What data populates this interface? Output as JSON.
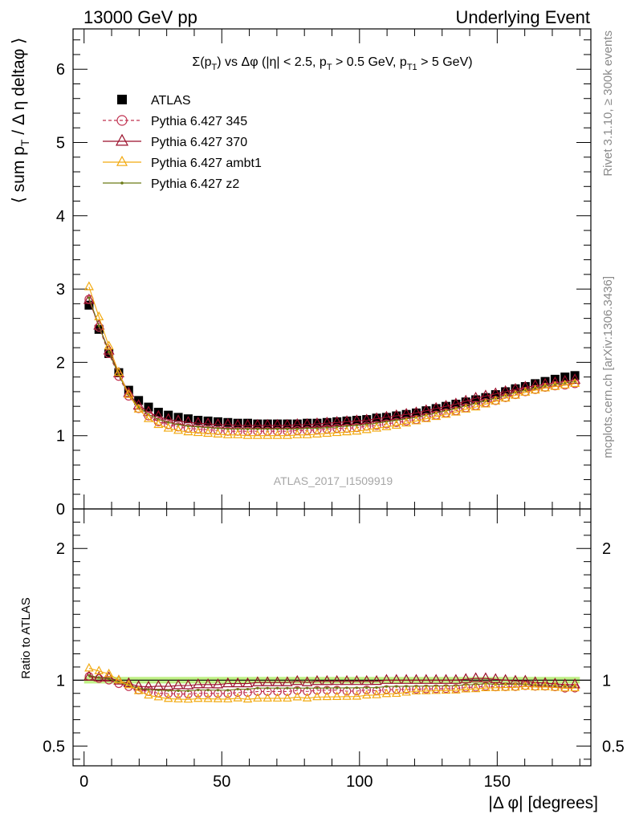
{
  "header": {
    "left": "13000 GeV pp",
    "right": "Underlying Event"
  },
  "side_labels": {
    "rivet": "Rivet 3.1.10, ≥ 300k events",
    "mcplots": "mcplots.cern.ch [arXiv:1306.3436]"
  },
  "watermark": "ATLAS_2017_I1509919",
  "colors": {
    "atlas": "#000000",
    "p345": "#c0304f",
    "p370": "#9a0f2a",
    "ambt1": "#f2a90f",
    "z2": "#6b7a16",
    "band": "#b9f07a"
  },
  "chart_data": [
    {
      "type": "scatter",
      "panel": "main",
      "title": "Σ(pT) vs Δφ (|η| < 2.5, pT > 0.5 GeV, pT1 > 5 GeV)",
      "ylabel": "⟨ sum pT / Δ η deltaφ ⟩",
      "xlim": [
        -4,
        184
      ],
      "ylim": [
        0,
        6.55
      ],
      "yticks": [
        0,
        1,
        2,
        3,
        4,
        5,
        6
      ],
      "legend_position": "top-left",
      "legend": [
        "ATLAS",
        "Pythia 6.427 345",
        "Pythia 6.427 370",
        "Pythia 6.427 ambt1",
        "Pythia 6.427 z2"
      ],
      "x": [
        1.8,
        5.4,
        9.0,
        12.6,
        16.2,
        19.8,
        23.4,
        27.0,
        30.6,
        34.2,
        37.8,
        41.4,
        45.0,
        48.6,
        52.2,
        55.8,
        59.4,
        63.0,
        66.6,
        70.2,
        73.8,
        77.4,
        81.0,
        84.6,
        88.2,
        91.8,
        95.4,
        99.0,
        102.6,
        106.2,
        109.8,
        113.4,
        117.0,
        120.6,
        124.2,
        127.8,
        131.4,
        135.0,
        138.6,
        142.2,
        145.8,
        149.4,
        153.0,
        156.6,
        160.2,
        163.8,
        167.4,
        171.0,
        174.6,
        178.2
      ],
      "series": [
        {
          "name": "ATLAS",
          "values": [
            2.78,
            2.45,
            2.12,
            1.86,
            1.62,
            1.48,
            1.39,
            1.32,
            1.28,
            1.25,
            1.23,
            1.21,
            1.2,
            1.19,
            1.18,
            1.17,
            1.17,
            1.16,
            1.16,
            1.16,
            1.16,
            1.16,
            1.17,
            1.17,
            1.18,
            1.19,
            1.2,
            1.21,
            1.22,
            1.24,
            1.25,
            1.27,
            1.29,
            1.31,
            1.34,
            1.37,
            1.4,
            1.43,
            1.46,
            1.49,
            1.52,
            1.56,
            1.6,
            1.64,
            1.67,
            1.71,
            1.74,
            1.77,
            1.8,
            1.82
          ]
        },
        {
          "name": "Pythia 6.427 345",
          "values": [
            2.86,
            2.48,
            2.12,
            1.81,
            1.54,
            1.37,
            1.27,
            1.19,
            1.15,
            1.12,
            1.1,
            1.09,
            1.08,
            1.07,
            1.06,
            1.06,
            1.06,
            1.06,
            1.06,
            1.06,
            1.06,
            1.07,
            1.07,
            1.08,
            1.09,
            1.1,
            1.1,
            1.11,
            1.13,
            1.14,
            1.16,
            1.18,
            1.2,
            1.22,
            1.25,
            1.28,
            1.31,
            1.34,
            1.38,
            1.41,
            1.45,
            1.48,
            1.52,
            1.56,
            1.6,
            1.63,
            1.66,
            1.68,
            1.69,
            1.71
          ]
        },
        {
          "name": "Pythia 6.427 370",
          "values": [
            2.85,
            2.5,
            2.16,
            1.85,
            1.58,
            1.41,
            1.32,
            1.26,
            1.22,
            1.2,
            1.18,
            1.17,
            1.16,
            1.15,
            1.15,
            1.14,
            1.14,
            1.14,
            1.14,
            1.14,
            1.14,
            1.15,
            1.15,
            1.16,
            1.17,
            1.18,
            1.19,
            1.2,
            1.21,
            1.23,
            1.25,
            1.27,
            1.29,
            1.31,
            1.34,
            1.37,
            1.4,
            1.43,
            1.47,
            1.51,
            1.54,
            1.57,
            1.6,
            1.63,
            1.66,
            1.68,
            1.7,
            1.72,
            1.74,
            1.76
          ]
        },
        {
          "name": "Pythia 6.427 ambt1",
          "values": [
            3.03,
            2.62,
            2.22,
            1.86,
            1.56,
            1.36,
            1.23,
            1.15,
            1.1,
            1.07,
            1.05,
            1.04,
            1.03,
            1.02,
            1.01,
            1.01,
            1.0,
            1.0,
            1.0,
            1.0,
            1.0,
            1.01,
            1.01,
            1.02,
            1.03,
            1.04,
            1.05,
            1.06,
            1.08,
            1.1,
            1.12,
            1.14,
            1.17,
            1.2,
            1.23,
            1.26,
            1.29,
            1.32,
            1.36,
            1.39,
            1.43,
            1.47,
            1.51,
            1.55,
            1.59,
            1.62,
            1.65,
            1.67,
            1.69,
            1.71
          ]
        },
        {
          "name": "Pythia 6.427 z2",
          "values": [
            2.88,
            2.5,
            2.14,
            1.83,
            1.56,
            1.39,
            1.29,
            1.22,
            1.18,
            1.15,
            1.13,
            1.12,
            1.11,
            1.1,
            1.09,
            1.09,
            1.09,
            1.09,
            1.09,
            1.09,
            1.09,
            1.09,
            1.1,
            1.1,
            1.11,
            1.12,
            1.13,
            1.14,
            1.15,
            1.17,
            1.19,
            1.21,
            1.23,
            1.25,
            1.28,
            1.31,
            1.34,
            1.37,
            1.41,
            1.44,
            1.48,
            1.51,
            1.55,
            1.59,
            1.62,
            1.65,
            1.68,
            1.7,
            1.72,
            1.74
          ]
        }
      ]
    },
    {
      "type": "scatter",
      "panel": "ratio",
      "ylabel": "Ratio to ATLAS",
      "xlabel": "|Δ φ| [degrees]",
      "xlim": [
        -4,
        184
      ],
      "ylim": [
        0.35,
        2.3
      ],
      "yticks": [
        0.5,
        1,
        2
      ],
      "xticks": [
        0,
        50,
        100,
        150
      ],
      "note": "ratio = series / ATLAS; ATLAS uncertainty band around 1"
    }
  ]
}
